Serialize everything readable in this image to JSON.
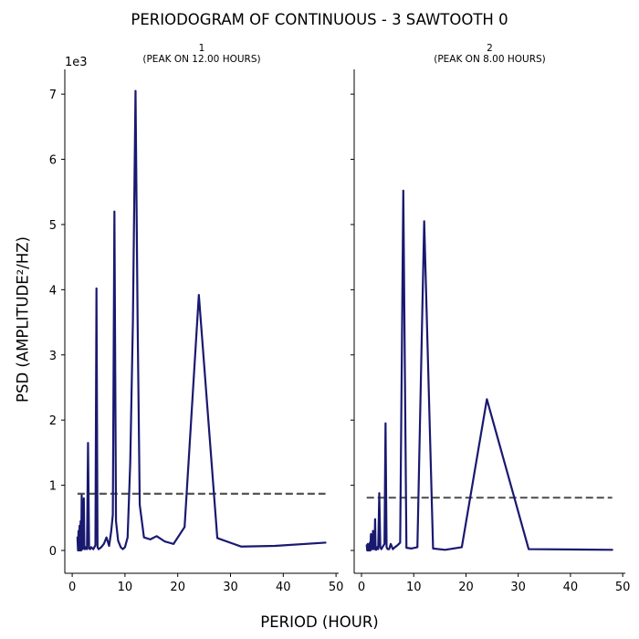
{
  "figure": {
    "title": "PERIODOGRAM OF CONTINUOUS - 3 SAWTOOTH 0",
    "xlabel": "PERIOD (HOUR)",
    "ylabel": "PSD (AMPLITUDE²/HZ)",
    "y_offset_label": "1e3",
    "line_color": "#191970",
    "threshold_color": "#555555"
  },
  "chart_data": [
    {
      "type": "line",
      "subplot_title_line1": "1",
      "subplot_title_line2": "(PEAK ON 12.00 HOURS)",
      "xlim": [
        -1.4,
        50.5
      ],
      "ylim": [
        -0.35,
        7.38
      ],
      "y_unit_multiplier": 1000,
      "xticks": [
        0,
        10,
        20,
        30,
        40,
        50
      ],
      "yticks": [
        0,
        1,
        2,
        3,
        4,
        5,
        6,
        7
      ],
      "threshold": 0.87,
      "threshold_x": [
        1,
        48
      ],
      "series": [
        {
          "x": [
            1.0,
            1.1,
            1.2,
            1.3,
            1.4,
            1.5,
            1.6,
            1.7,
            1.8,
            1.9,
            2.0,
            2.1,
            2.2,
            2.3,
            2.4,
            2.6,
            2.8,
            3.0,
            3.2,
            3.4,
            3.6,
            4.0,
            4.4,
            4.6,
            4.8,
            5.0,
            5.5,
            6.0,
            6.5,
            7.0,
            7.4,
            7.7,
            8.0,
            8.3,
            8.7,
            9.2,
            9.6,
            10.0,
            10.5,
            11.0,
            11.5,
            12.0,
            12.4,
            12.8,
            13.6,
            14.8,
            16.0,
            17.5,
            19.2,
            21.3,
            24.0,
            27.5,
            32.0,
            38.4,
            48.0
          ],
          "y": [
            0.2,
            0.0,
            0.3,
            0.0,
            0.38,
            0.0,
            0.45,
            0.0,
            0.85,
            0.05,
            0.02,
            0.15,
            0.8,
            0.05,
            0.02,
            0.05,
            0.02,
            1.65,
            0.03,
            0.02,
            0.05,
            0.02,
            0.08,
            4.02,
            0.05,
            0.02,
            0.05,
            0.1,
            0.2,
            0.07,
            0.3,
            0.55,
            5.2,
            0.45,
            0.15,
            0.05,
            0.02,
            0.05,
            0.2,
            1.35,
            3.5,
            7.05,
            3.5,
            0.7,
            0.2,
            0.17,
            0.22,
            0.14,
            0.1,
            0.36,
            3.92,
            0.19,
            0.06,
            0.07,
            0.12
          ]
        }
      ]
    },
    {
      "type": "line",
      "subplot_title_line1": "2",
      "subplot_title_line2": "(PEAK ON 8.00 HOURS)",
      "xlim": [
        -1.4,
        50.5
      ],
      "ylim": [
        -0.35,
        7.38
      ],
      "y_unit_multiplier": 1000,
      "xticks": [
        0,
        10,
        20,
        30,
        40,
        50
      ],
      "yticks": [
        0,
        1,
        2,
        3,
        4,
        5,
        6,
        7
      ],
      "threshold": 0.81,
      "threshold_x": [
        1,
        48
      ],
      "series": [
        {
          "x": [
            1.0,
            1.1,
            1.2,
            1.3,
            1.4,
            1.5,
            1.6,
            1.7,
            1.8,
            1.9,
            2.0,
            2.1,
            2.2,
            2.3,
            2.4,
            2.5,
            2.6,
            2.7,
            2.8,
            3.0,
            3.2,
            3.4,
            3.6,
            3.8,
            4.0,
            4.4,
            4.6,
            4.8,
            5.0,
            5.3,
            5.6,
            6.0,
            6.4,
            6.9,
            7.4,
            8.0,
            8.6,
            9.6,
            10.7,
            12.0,
            13.7,
            16.0,
            19.2,
            24.0,
            32.0,
            48.0
          ],
          "y": [
            0.08,
            0.0,
            0.1,
            0.0,
            0.05,
            0.0,
            0.12,
            0.0,
            0.25,
            0.02,
            0.05,
            0.02,
            0.3,
            0.05,
            0.02,
            0.02,
            0.48,
            0.02,
            0.01,
            0.05,
            0.02,
            0.88,
            0.05,
            0.02,
            0.05,
            0.1,
            1.95,
            0.05,
            0.02,
            0.02,
            0.1,
            0.02,
            0.05,
            0.08,
            0.12,
            5.52,
            0.04,
            0.03,
            0.05,
            5.05,
            0.03,
            0.01,
            0.05,
            2.32,
            0.02,
            0.01
          ]
        }
      ]
    }
  ]
}
